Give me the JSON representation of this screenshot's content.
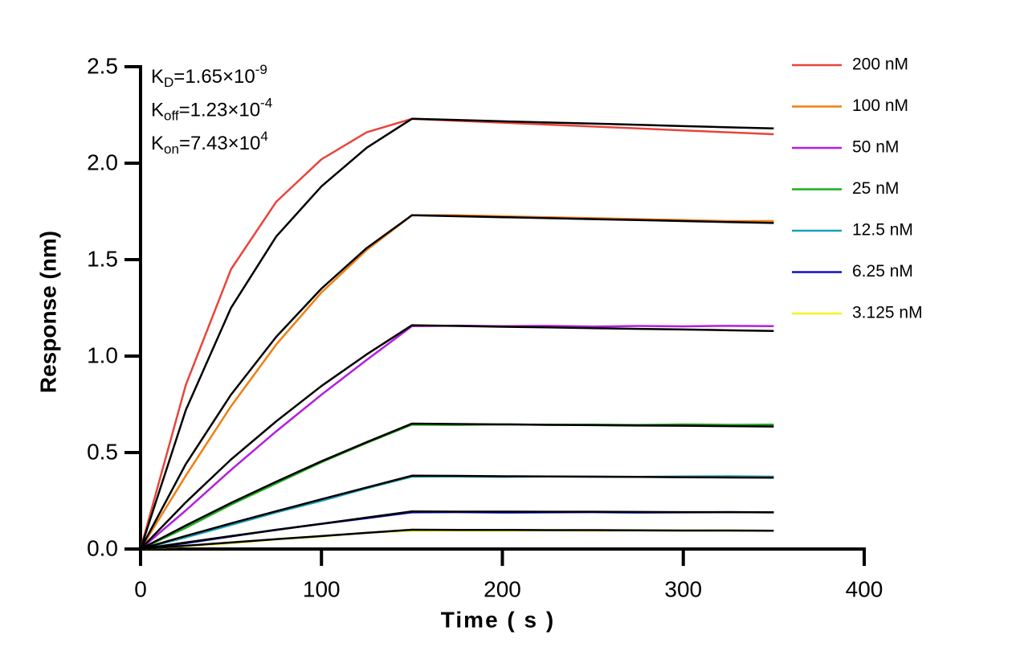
{
  "chart_data": {
    "type": "line",
    "xlabel": "Time ( s )",
    "ylabel": "Response (nm)",
    "annotations": [
      {
        "base": "K",
        "sub": "D",
        "text": "=1.65×10",
        "sup": "-9"
      },
      {
        "base": "K",
        "sub": "off",
        "text": "=1.23×10",
        "sup": "-4"
      },
      {
        "base": "K",
        "sub": "on",
        "text": "=7.43×10",
        "sup": "4"
      }
    ],
    "xlim": [
      0,
      400
    ],
    "xticks": [
      0,
      100,
      200,
      300,
      400
    ],
    "ylim": [
      0,
      2.5
    ],
    "yticks": [
      {
        "value": 0,
        "label": "0.0"
      },
      0.5,
      {
        "value": 1,
        "label": "1.0"
      },
      1.5,
      {
        "value": 2,
        "label": "2.0"
      },
      2.5
    ],
    "legend": "upper right",
    "fit_color": "#000000",
    "x": [
      0,
      25,
      50,
      75,
      100,
      125,
      150,
      175,
      200,
      225,
      250,
      275,
      300,
      325,
      350
    ],
    "series": [
      {
        "name": "200 nM",
        "color": "#e8453c",
        "values": [
          0,
          0.85,
          1.45,
          1.8,
          2.02,
          2.16,
          2.23,
          2.22,
          2.21,
          2.2,
          2.19,
          2.18,
          2.17,
          2.16,
          2.15
        ],
        "fit": [
          0,
          0.72,
          1.25,
          1.62,
          1.88,
          2.08,
          2.23,
          2.224,
          2.217,
          2.211,
          2.205,
          2.199,
          2.192,
          2.186,
          2.18
        ]
      },
      {
        "name": "100 nM",
        "color": "#f07f10",
        "values": [
          0,
          0.38,
          0.74,
          1.06,
          1.33,
          1.55,
          1.73,
          1.73,
          1.725,
          1.72,
          1.715,
          1.71,
          1.705,
          1.7,
          1.7
        ],
        "fit": [
          0,
          0.44,
          0.8,
          1.1,
          1.35,
          1.56,
          1.73,
          1.725,
          1.72,
          1.715,
          1.71,
          1.705,
          1.7,
          1.695,
          1.69
        ]
      },
      {
        "name": "50 nM",
        "color": "#b41ee0",
        "values": [
          0,
          0.2,
          0.41,
          0.61,
          0.8,
          0.98,
          1.155,
          1.158,
          1.155,
          1.157,
          1.153,
          1.156,
          1.154,
          1.157,
          1.155
        ],
        "fit": [
          0,
          0.242,
          0.464,
          0.662,
          0.845,
          1.009,
          1.16,
          1.156,
          1.152,
          1.149,
          1.145,
          1.141,
          1.138,
          1.134,
          1.13
        ]
      },
      {
        "name": "25 nM",
        "color": "#1cae1c",
        "values": [
          0,
          0.11,
          0.23,
          0.34,
          0.45,
          0.55,
          0.645,
          0.643,
          0.646,
          0.644,
          0.645,
          0.643,
          0.646,
          0.644,
          0.645
        ],
        "fit": [
          0,
          0.122,
          0.239,
          0.349,
          0.455,
          0.554,
          0.65,
          0.648,
          0.646,
          0.644,
          0.642,
          0.64,
          0.639,
          0.637,
          0.635
        ]
      },
      {
        "name": "12.5 nM",
        "color": "#1ba0b8",
        "values": [
          0,
          0.06,
          0.125,
          0.19,
          0.25,
          0.315,
          0.375,
          0.376,
          0.374,
          0.376,
          0.375,
          0.374,
          0.376,
          0.377,
          0.375
        ],
        "fit": [
          0,
          0.068,
          0.133,
          0.196,
          0.258,
          0.319,
          0.38,
          0.379,
          0.377,
          0.376,
          0.375,
          0.374,
          0.372,
          0.371,
          0.37
        ]
      },
      {
        "name": "6.25 nM",
        "color": "#1010c8",
        "values": [
          0,
          0.03,
          0.065,
          0.1,
          0.13,
          0.16,
          0.19,
          0.191,
          0.189,
          0.19,
          0.191,
          0.189,
          0.19,
          0.191,
          0.19
        ],
        "fit": [
          0,
          0.034,
          0.067,
          0.099,
          0.131,
          0.163,
          0.195,
          0.194,
          0.194,
          0.193,
          0.193,
          0.192,
          0.191,
          0.191,
          0.19
        ]
      },
      {
        "name": "3.125 nM",
        "color": "#f5f51a",
        "values": [
          0,
          0.015,
          0.03,
          0.05,
          0.065,
          0.085,
          0.095,
          0.096,
          0.095,
          0.097,
          0.095,
          0.096,
          0.095,
          0.096,
          0.095
        ],
        "fit": [
          0,
          0.017,
          0.034,
          0.051,
          0.067,
          0.084,
          0.1,
          0.099,
          0.099,
          0.098,
          0.098,
          0.097,
          0.096,
          0.096,
          0.095
        ]
      }
    ]
  }
}
